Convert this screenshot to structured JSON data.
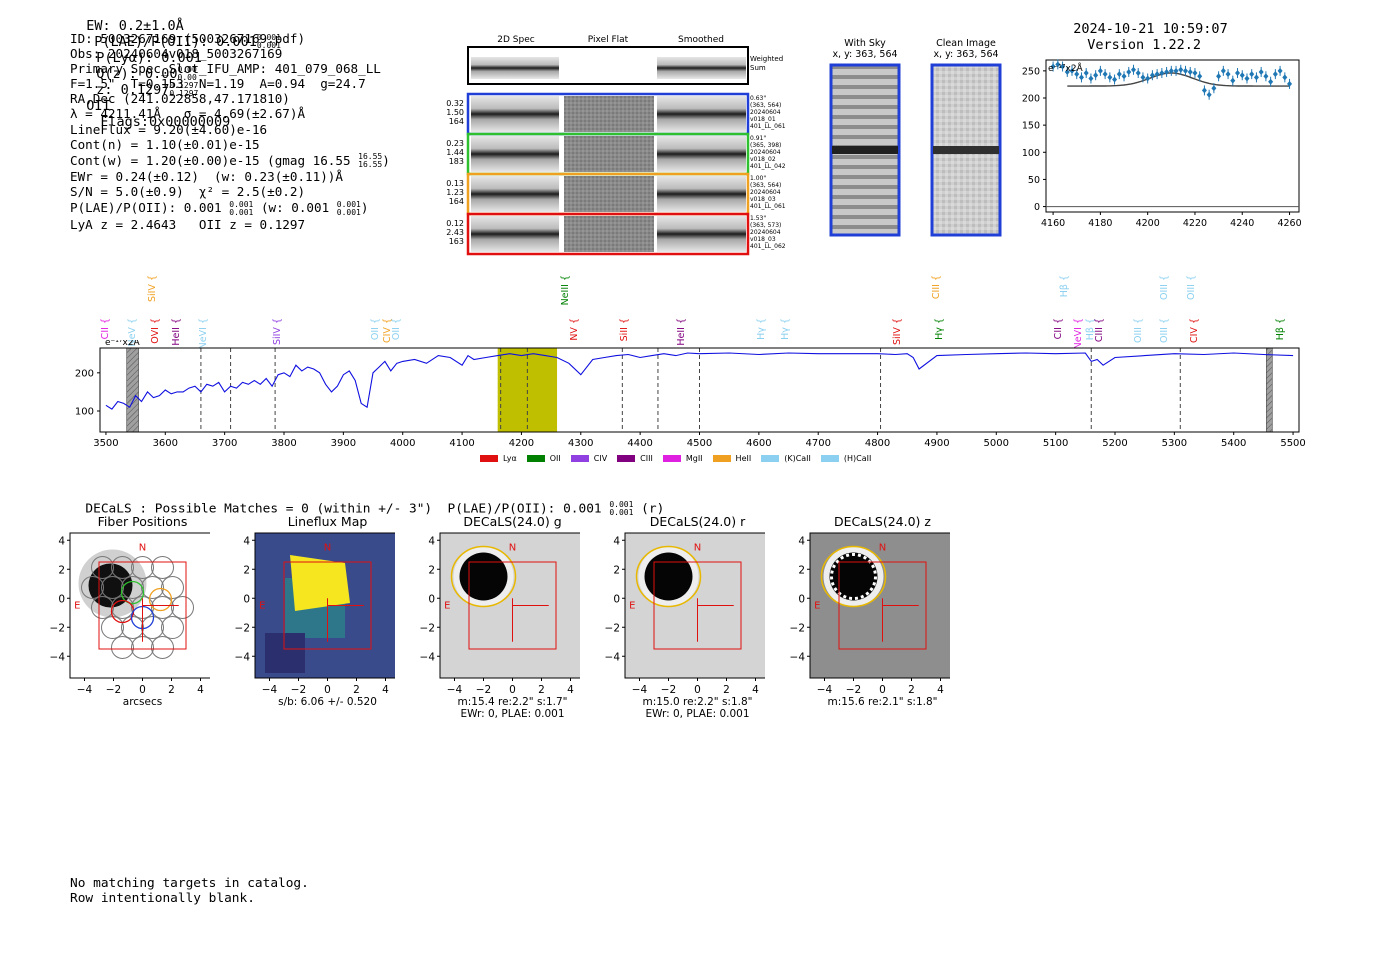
{
  "header": {
    "ew": "EW: 0.2±1.0Å",
    "plae_label": "P(LAE)/P(OII): 0.001",
    "plae_hi": "0.001",
    "plae_lo": "0.001",
    "plya": "P(Lyα): 0.001",
    "qz_label": "Q(z): 0.00",
    "qz_hi": "0.00",
    "qz_lo": "0.00",
    "z_label": "z: 0.1297",
    "z_hi": "0.1297",
    "z_lo": "0.1297",
    "z_type": "OII",
    "flags": "Flags:0x00000009",
    "datetime": "2024-10-21 10:59:07",
    "version": "Version 1.22.2"
  },
  "info": {
    "lines": [
      "ID: 5003267169 (5003267169.pdf)",
      "Obs: 20240604v018_5003267169",
      "Primary Spec_Slot_IFU_AMP: 401_079_068_LL",
      "F=1.5\"  T=0.153  N=1.19  A=0.94  g=24.7",
      "RA,Dec (241.022858,47.171810)",
      "λ = 4211.41Å   σ = 4.69(±2.67)Å",
      "LineFlux = 9.20(±4.60)e-16",
      "Cont(n) = 1.10(±0.01)e-15"
    ],
    "contw": "Cont(w) = 1.20(±0.00)e-15 (gmag 16.55",
    "contw_hi": "16.55",
    "contw_lo": "16.55",
    "ewr": "EWr = 0.24(±0.12)  (w: 0.23(±0.11))Å",
    "sn": "S/N = 5.0(±0.9)  χ² = 2.5(±0.2)",
    "plae": "P(LAE)/P(OII): 0.001",
    "plae_hi": "0.001",
    "plae_lo": "0.001",
    "plae_w": "(w: 0.001",
    "plae_w_hi": "0.001",
    "plae_w_lo": "0.001",
    "lya_oii": "LyA z = 2.4643   OII z = 0.1297"
  },
  "cutouts": {
    "col_2d": "2D Spec",
    "col_flat": "Pixel Flat",
    "col_smooth": "Smoothed",
    "weighted": "Weighted\nSum",
    "rows": [
      {
        "left": [
          "0.32",
          "1.50",
          "164"
        ],
        "right": [
          "0.63\"",
          "(363, 564)",
          "20240604",
          "v018_01",
          "401_LL_061"
        ],
        "color": "#1f3fd6"
      },
      {
        "left": [
          "0.23",
          "1.44",
          "183"
        ],
        "right": [
          "0.91\"",
          "(365, 398)",
          "20240604",
          "v018_02",
          "401_LL_042"
        ],
        "color": "#2fc02f"
      },
      {
        "left": [
          "0.13",
          "1.23",
          "164"
        ],
        "right": [
          "1.00\"",
          "(363, 564)",
          "20240604",
          "v018_03",
          "401_LL_061"
        ],
        "color": "#f0a020"
      },
      {
        "left": [
          "0.12",
          "2.43",
          "163"
        ],
        "right": [
          "1.53\"",
          "(363, 573)",
          "20240604",
          "v018_03",
          "401_LL_062"
        ],
        "color": "#e01010"
      }
    ],
    "with_sky_title": "With Sky",
    "with_sky_xy": "x, y: 363, 564",
    "clean_title": "Clean Image",
    "clean_xy": "x, y: 363, 564"
  },
  "small_fit": {
    "scale_label": "e⁻¹⁷x2Å",
    "x_ticks": [
      "4160",
      "4180",
      "4200",
      "4220",
      "4240",
      "4260"
    ],
    "y_ticks": [
      "250",
      "200",
      "150",
      "100",
      "50",
      "0"
    ]
  },
  "chart_data": [
    {
      "type": "scatter",
      "title": "",
      "xlabel": "",
      "ylabel": "e-17 x2Å",
      "xlim": [
        4157,
        4264
      ],
      "ylim": [
        -10,
        270
      ],
      "x": [
        4160,
        4162,
        4164,
        4166,
        4168,
        4170,
        4172,
        4174,
        4176,
        4178,
        4180,
        4182,
        4184,
        4186,
        4188,
        4190,
        4192,
        4194,
        4196,
        4198,
        4200,
        4202,
        4204,
        4206,
        4208,
        4210,
        4212,
        4214,
        4216,
        4218,
        4220,
        4222,
        4224,
        4226,
        4228,
        4230,
        4232,
        4234,
        4236,
        4238,
        4240,
        4242,
        4244,
        4246,
        4248,
        4250,
        4252,
        4254,
        4256,
        4258,
        4260
      ],
      "y": [
        258,
        262,
        258,
        248,
        250,
        244,
        238,
        246,
        236,
        242,
        250,
        244,
        238,
        234,
        244,
        240,
        248,
        252,
        246,
        238,
        236,
        242,
        244,
        246,
        248,
        250,
        250,
        252,
        250,
        248,
        246,
        240,
        214,
        206,
        218,
        240,
        250,
        244,
        232,
        246,
        242,
        236,
        244,
        238,
        248,
        240,
        230,
        244,
        250,
        238,
        226
      ],
      "fit_baseline": 222,
      "fit_peak": 246,
      "fit_center": 4210
    },
    {
      "type": "line",
      "title": "",
      "xlabel": "",
      "ylabel": "e-17 x2Å",
      "scale_label": "e⁻¹⁷x2Å",
      "xlim": [
        3490,
        5510
      ],
      "ylim": [
        45,
        265
      ],
      "x_ticks": [
        3500,
        3600,
        3700,
        3800,
        3900,
        4000,
        4100,
        4200,
        4300,
        4400,
        4500,
        4600,
        4700,
        4800,
        4900,
        5000,
        5100,
        5200,
        5300,
        5400,
        5500
      ],
      "y_ticks": [
        100,
        200
      ],
      "line_labels": [
        {
          "name": "CII {",
          "wave": 3500,
          "color": "#e020e0",
          "row": 2
        },
        {
          "name": "NeV {",
          "wave": 3545,
          "color": "#8bd0f0",
          "row": 2
        },
        {
          "name": "SiIV {",
          "wave": 3580,
          "color": "#f0a020",
          "row": 0
        },
        {
          "name": "OVI {",
          "wave": 3585,
          "color": "#e01010",
          "row": 2
        },
        {
          "name": "HeII {",
          "wave": 3620,
          "color": "#800080",
          "row": 2
        },
        {
          "name": "NeVI {",
          "wave": 3665,
          "color": "#8bd0f0",
          "row": 2
        },
        {
          "name": "SiIV {",
          "wave": 3790,
          "color": "#9040e0",
          "row": 2
        },
        {
          "name": "OII {",
          "wave": 3955,
          "color": "#8bd0f0",
          "row": 2
        },
        {
          "name": "CIV {",
          "wave": 3975,
          "color": "#f0a020",
          "row": 2
        },
        {
          "name": "OII {",
          "wave": 3990,
          "color": "#8bd0f0",
          "row": 2
        },
        {
          "name": "NeIII {",
          "wave": 4275,
          "color": "#008000",
          "row": 0
        },
        {
          "name": "NV {",
          "wave": 4290,
          "color": "#e01010",
          "row": 2
        },
        {
          "name": "SiII {",
          "wave": 4375,
          "color": "#e01010",
          "row": 2
        },
        {
          "name": "HeII {",
          "wave": 4470,
          "color": "#800080",
          "row": 2
        },
        {
          "name": "Hγ {",
          "wave": 4605,
          "color": "#8bd0f0",
          "row": 2
        },
        {
          "name": "Hγ {",
          "wave": 4645,
          "color": "#8bd0f0",
          "row": 2
        },
        {
          "name": "SiIV {",
          "wave": 4835,
          "color": "#e01010",
          "row": 2
        },
        {
          "name": "CIII {",
          "wave": 4900,
          "color": "#f0a020",
          "row": 0
        },
        {
          "name": "Hγ {",
          "wave": 4905,
          "color": "#008000",
          "row": 2
        },
        {
          "name": "Hβ {",
          "wave": 5115,
          "color": "#8bd0f0",
          "row": 0
        },
        {
          "name": "CII {",
          "wave": 5105,
          "color": "#800080",
          "row": 2
        },
        {
          "name": "NeVI {",
          "wave": 5140,
          "color": "#e020e0",
          "row": 2
        },
        {
          "name": "Hβ {",
          "wave": 5160,
          "color": "#8bd0f0",
          "row": 2
        },
        {
          "name": "CIII {",
          "wave": 5175,
          "color": "#800080",
          "row": 2
        },
        {
          "name": "OIII {",
          "wave": 5240,
          "color": "#8bd0f0",
          "row": 2
        },
        {
          "name": "OIII {",
          "wave": 5285,
          "color": "#8bd0f0",
          "row": 0
        },
        {
          "name": "OIII {",
          "wave": 5285,
          "color": "#8bd0f0",
          "row": 2
        },
        {
          "name": "OIII {",
          "wave": 5330,
          "color": "#8bd0f0",
          "row": 0
        },
        {
          "name": "CIV {",
          "wave": 5335,
          "color": "#e01010",
          "row": 2
        },
        {
          "name": "Hβ {",
          "wave": 5480,
          "color": "#008000",
          "row": 2
        }
      ],
      "dashed_lines": [
        3660,
        3710,
        3785,
        4165,
        4210,
        4370,
        4430,
        4500,
        4805,
        5160,
        5310
      ],
      "highlight": [
        4160,
        4260
      ],
      "masked": [
        [
          3535,
          3555
        ],
        [
          5455,
          5465
        ]
      ],
      "spectrum_x": [
        3500,
        3510,
        3520,
        3530,
        3540,
        3550,
        3560,
        3570,
        3580,
        3590,
        3600,
        3610,
        3620,
        3630,
        3640,
        3650,
        3660,
        3670,
        3680,
        3690,
        3700,
        3710,
        3720,
        3730,
        3740,
        3750,
        3760,
        3770,
        3780,
        3790,
        3800,
        3810,
        3820,
        3830,
        3840,
        3850,
        3860,
        3870,
        3880,
        3890,
        3900,
        3910,
        3920,
        3930,
        3940,
        3950,
        3960,
        3970,
        3980,
        3990,
        4000,
        4020,
        4040,
        4060,
        4080,
        4100,
        4110,
        4120,
        4140,
        4160,
        4180,
        4200,
        4220,
        4240,
        4260,
        4280,
        4300,
        4320,
        4340,
        4360,
        4380,
        4400,
        4420,
        4440,
        4460,
        4480,
        4500,
        4550,
        4600,
        4650,
        4700,
        4750,
        4800,
        4830,
        4850,
        4860,
        4870,
        4900,
        4950,
        5000,
        5050,
        5100,
        5150,
        5160,
        5170,
        5180,
        5200,
        5250,
        5300,
        5350,
        5400,
        5450,
        5500
      ],
      "spectrum_y": [
        115,
        105,
        125,
        120,
        110,
        140,
        125,
        150,
        135,
        140,
        155,
        145,
        150,
        150,
        160,
        165,
        150,
        170,
        165,
        175,
        150,
        165,
        160,
        175,
        170,
        180,
        170,
        185,
        165,
        195,
        200,
        190,
        220,
        205,
        215,
        210,
        200,
        170,
        150,
        165,
        195,
        205,
        180,
        120,
        110,
        200,
        215,
        230,
        205,
        225,
        230,
        235,
        225,
        245,
        240,
        220,
        245,
        235,
        240,
        245,
        250,
        245,
        250,
        245,
        240,
        225,
        195,
        235,
        240,
        245,
        248,
        240,
        245,
        250,
        245,
        252,
        250,
        252,
        248,
        252,
        250,
        250,
        250,
        248,
        250,
        240,
        210,
        245,
        248,
        250,
        252,
        250,
        252,
        230,
        235,
        220,
        240,
        245,
        250,
        248,
        252,
        248,
        245
      ],
      "legend": [
        {
          "name": "Lyα",
          "color": "#e01010"
        },
        {
          "name": "OII",
          "color": "#008000"
        },
        {
          "name": "CIV",
          "color": "#9040e0"
        },
        {
          "name": "CIII",
          "color": "#800080"
        },
        {
          "name": "MgII",
          "color": "#e020e0"
        },
        {
          "name": "HeII",
          "color": "#f0a020"
        },
        {
          "name": "(K)CaII",
          "color": "#8bd0f0"
        },
        {
          "name": "(H)CaII",
          "color": "#8bd0f0"
        }
      ]
    }
  ],
  "decals": {
    "summary_prefix": "DECaLS : Possible Matches = 0 (within +/- 3\")  P(LAE)/P(OII): 0.001",
    "summary_hi": "0.001",
    "summary_lo": "0.001",
    "summary_suffix": "(r)",
    "panels": [
      {
        "title": "Fiber Positions",
        "sub1": "arcsecs",
        "sub2": ""
      },
      {
        "title": "Lineflux Map",
        "sub1": "s/b: 6.06 +/- 0.520",
        "sub2": ""
      },
      {
        "title": "DECaLS(24.0) g",
        "sub1": "m:15.4  re:2.2\"  s:1.7\"",
        "sub2": "EWr: 0, PLAE: 0.001"
      },
      {
        "title": "DECaLS(24.0) r",
        "sub1": "m:15.0  re:2.2\"  s:1.8\"",
        "sub2": "EWr: 0, PLAE: 0.001"
      },
      {
        "title": "DECaLS(24.0) z",
        "sub1": "m:15.6  re:2.1\"  s:1.8\"",
        "sub2": ""
      }
    ],
    "y_ticks": [
      "4",
      "2",
      "0",
      "−2",
      "−4"
    ],
    "x_ticks": [
      "−4",
      "−2",
      "0",
      "2",
      "4"
    ],
    "north": "N",
    "east": "E"
  },
  "footer": {
    "line1": "No matching targets in catalog.",
    "line2": "Row intentionally blank."
  }
}
